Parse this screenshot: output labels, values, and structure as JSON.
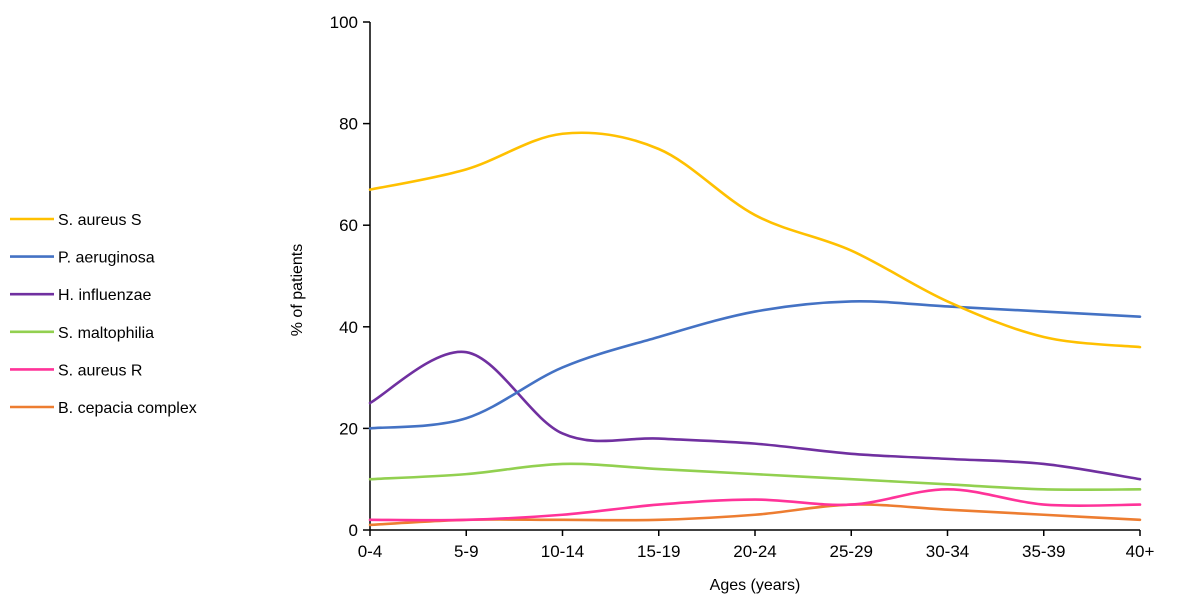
{
  "chart_data": {
    "type": "line",
    "title": "",
    "xlabel": "Ages (years)",
    "ylabel": "% of patients",
    "ylim": [
      0,
      100
    ],
    "yticks": [
      0,
      20,
      40,
      60,
      80,
      100
    ],
    "ytick_labels": [
      "0",
      "20",
      "40",
      "60",
      "80",
      "100"
    ],
    "grid": false,
    "smooth": true,
    "legend_position": "left",
    "categories": [
      "0-4",
      "5-9",
      "10-14",
      "15-19",
      "20-24",
      "25-29",
      "30-34",
      "35-39",
      "40+"
    ],
    "series": [
      {
        "name": "S. aureus S",
        "color": "#FFC000",
        "values": [
          67,
          71,
          78,
          75,
          62,
          55,
          45,
          38,
          36
        ]
      },
      {
        "name": "P. aeruginosa",
        "color": "#4472C4",
        "values": [
          20,
          22,
          32,
          38,
          43,
          45,
          44,
          43,
          42
        ]
      },
      {
        "name": "H. influenzae",
        "color": "#7030A0",
        "values": [
          25,
          35,
          19,
          18,
          17,
          15,
          14,
          13,
          10
        ]
      },
      {
        "name": "S. maltophilia",
        "color": "#92D050",
        "values": [
          10,
          11,
          13,
          12,
          11,
          10,
          9,
          8,
          8
        ]
      },
      {
        "name": "S. aureus R",
        "color": "#FF3399",
        "values": [
          2,
          2,
          3,
          5,
          6,
          5,
          8,
          5,
          5
        ]
      },
      {
        "name": "B. cepacia complex",
        "color": "#ED7D31",
        "values": [
          1,
          2,
          2,
          2,
          3,
          5,
          4,
          3,
          2
        ]
      }
    ]
  }
}
